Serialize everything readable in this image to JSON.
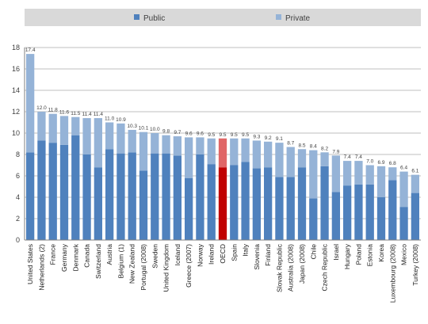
{
  "chart_data": {
    "type": "bar",
    "stacked": true,
    "title": "",
    "xlabel": "",
    "ylabel": "",
    "ylim": [
      0,
      18
    ],
    "yticks": [
      0,
      2,
      4,
      6,
      8,
      10,
      12,
      14,
      16,
      18
    ],
    "grid": true,
    "legend_position": "top",
    "categories": [
      "United States",
      "Netherlands (2)",
      "France",
      "Germany",
      "Denmark",
      "Canada",
      "Switzerland",
      "Austria",
      "Belgium (1)",
      "New Zealand",
      "Portugal (2008)",
      "Sweden",
      "United Kingdom",
      "Iceland",
      "Greece (2007)",
      "Norway",
      "Ireland",
      "OECD",
      "Spain",
      "Italy",
      "Slovenia",
      "Finland",
      "Slovak Republic",
      "Australia (2008)",
      "Japan (2008)",
      "Chile",
      "Czech Republic",
      "Israel",
      "Hungary",
      "Poland",
      "Estonia",
      "Korea",
      "Luxembourg (2008)",
      "Mexico",
      "Turkey (2008)"
    ],
    "totals": [
      17.4,
      12.0,
      11.8,
      11.6,
      11.5,
      11.4,
      11.4,
      11.0,
      10.9,
      10.3,
      10.1,
      10.0,
      9.8,
      9.7,
      9.6,
      9.6,
      9.5,
      9.5,
      9.5,
      9.5,
      9.3,
      9.2,
      9.1,
      8.7,
      8.5,
      8.4,
      8.2,
      7.9,
      7.4,
      7.4,
      7.0,
      6.9,
      6.8,
      6.4,
      6.1
    ],
    "total_labels": [
      "17.4",
      "12.0",
      "11.8",
      "11.6",
      "11.5",
      "11.4",
      "11.4",
      "11.0",
      "10.9",
      "10.3",
      "10.1",
      "10.0",
      "9.8",
      "9.7",
      "9.6",
      "9.6",
      "9.5",
      "9.5",
      "9.5",
      "9.5",
      "9.3",
      "9.2",
      "9.1",
      "8.7",
      "8.5",
      "8.4",
      "8.2",
      "7.9",
      "7.4",
      "7.4",
      "7.0",
      "6.9",
      "6.8",
      "6.4",
      "6.1"
    ],
    "series": [
      {
        "name": "Public",
        "values": [
          8.2,
          9.3,
          9.1,
          8.9,
          9.8,
          8.0,
          6.8,
          8.5,
          8.1,
          8.2,
          6.5,
          8.1,
          8.1,
          7.9,
          5.8,
          8.0,
          7.1,
          6.8,
          7.0,
          7.3,
          6.7,
          6.8,
          5.9,
          5.9,
          6.8,
          3.9,
          6.9,
          4.5,
          5.1,
          5.2,
          5.2,
          4.0,
          5.6,
          3.1,
          4.4
        ]
      },
      {
        "name": "Private",
        "values": [
          9.2,
          2.7,
          2.7,
          2.7,
          1.7,
          3.4,
          4.6,
          2.5,
          2.8,
          2.1,
          3.6,
          1.9,
          1.7,
          1.8,
          3.8,
          1.6,
          2.4,
          2.7,
          2.5,
          2.2,
          2.6,
          2.4,
          3.2,
          2.8,
          1.7,
          4.5,
          1.3,
          3.4,
          2.3,
          2.2,
          1.8,
          2.9,
          1.2,
          3.3,
          1.7
        ]
      }
    ],
    "highlight_category": "OECD",
    "colors": {
      "public": "#4f81bd",
      "private": "#95b3d7",
      "highlight_public": "#c00000",
      "highlight_private": "#e06666"
    }
  }
}
